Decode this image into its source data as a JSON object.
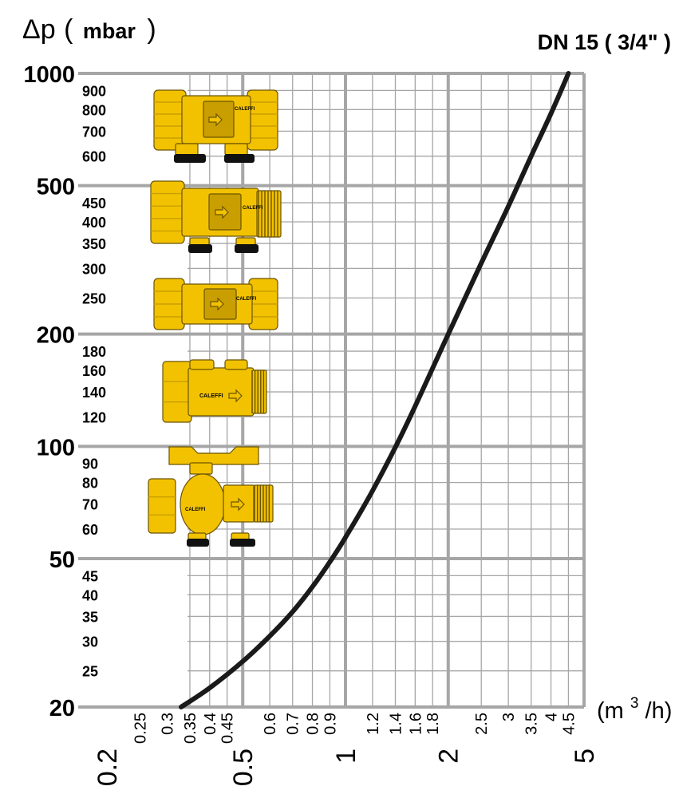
{
  "title": "DN 15 ( 3/4\" )",
  "y_label": {
    "symbol": "Δp",
    "paren_open": "(",
    "unit": "mbar",
    "paren_close": ")"
  },
  "x_unit": {
    "open": "(m",
    "sup": "3",
    "close": "/h)"
  },
  "y_major_ticks": [
    {
      "value": 1000,
      "label": "1000"
    },
    {
      "value": 500,
      "label": "500"
    },
    {
      "value": 200,
      "label": "200"
    },
    {
      "value": 100,
      "label": "100"
    },
    {
      "value": 50,
      "label": "50"
    },
    {
      "value": 20,
      "label": "20"
    }
  ],
  "y_minor_ticks": [
    {
      "value": 900,
      "label": "900"
    },
    {
      "value": 800,
      "label": "800"
    },
    {
      "value": 700,
      "label": "700"
    },
    {
      "value": 600,
      "label": "600"
    },
    {
      "value": 450,
      "label": "450"
    },
    {
      "value": 400,
      "label": "400"
    },
    {
      "value": 350,
      "label": "350"
    },
    {
      "value": 300,
      "label": "300"
    },
    {
      "value": 250,
      "label": "250"
    },
    {
      "value": 180,
      "label": "180"
    },
    {
      "value": 160,
      "label": "160"
    },
    {
      "value": 140,
      "label": "140"
    },
    {
      "value": 120,
      "label": "120"
    },
    {
      "value": 90,
      "label": "90"
    },
    {
      "value": 80,
      "label": "80"
    },
    {
      "value": 70,
      "label": "70"
    },
    {
      "value": 60,
      "label": "60"
    },
    {
      "value": 45,
      "label": "45"
    },
    {
      "value": 40,
      "label": "40"
    },
    {
      "value": 35,
      "label": "35"
    },
    {
      "value": 30,
      "label": "30"
    },
    {
      "value": 25,
      "label": "25"
    }
  ],
  "x_major_ticks": [
    {
      "value": 0.2,
      "label": "0.2"
    },
    {
      "value": 0.5,
      "label": "0.5"
    },
    {
      "value": 1,
      "label": "1"
    },
    {
      "value": 2,
      "label": "2"
    },
    {
      "value": 5,
      "label": "5"
    }
  ],
  "x_minor_ticks": [
    {
      "value": 0.25,
      "label": "0.25"
    },
    {
      "value": 0.3,
      "label": "0.3"
    },
    {
      "value": 0.35,
      "label": "0.35"
    },
    {
      "value": 0.4,
      "label": "0.4"
    },
    {
      "value": 0.45,
      "label": "0.45"
    },
    {
      "value": 0.6,
      "label": "0.6"
    },
    {
      "value": 0.7,
      "label": "0.7"
    },
    {
      "value": 0.8,
      "label": "0.8"
    },
    {
      "value": 0.9,
      "label": "0.9"
    },
    {
      "value": 1.2,
      "label": "1.2"
    },
    {
      "value": 1.4,
      "label": "1.4"
    },
    {
      "value": 1.6,
      "label": "1.6"
    },
    {
      "value": 1.8,
      "label": "1.8"
    },
    {
      "value": 2.5,
      "label": "2.5"
    },
    {
      "value": 3,
      "label": "3"
    },
    {
      "value": 3.5,
      "label": "3.5"
    },
    {
      "value": 4,
      "label": "4"
    },
    {
      "value": 4.5,
      "label": "4.5"
    }
  ],
  "x_grid_values": [
    0.25,
    0.3,
    0.35,
    0.4,
    0.45,
    0.6,
    0.7,
    0.8,
    0.9,
    1.2,
    1.4,
    1.6,
    1.8,
    2.5,
    3,
    3.5,
    4,
    4.5
  ],
  "y_grid_values": [
    900,
    800,
    700,
    600,
    450,
    400,
    350,
    300,
    250,
    180,
    160,
    140,
    120,
    90,
    80,
    70,
    60,
    45,
    40,
    35,
    30,
    25
  ],
  "valve_images": [
    {
      "name": "valve-image-1",
      "text": "CALEFFI"
    },
    {
      "name": "valve-image-2",
      "text": "CALEFFI"
    },
    {
      "name": "valve-image-3",
      "text": "CALEFFI"
    },
    {
      "name": "valve-image-4",
      "text": "CALEFFI"
    },
    {
      "name": "valve-image-5",
      "text": "CALEFFI"
    }
  ],
  "colors": {
    "grid": "#a6a6a6",
    "curve": "#1a1a1a",
    "brass": "#f2c200",
    "brass_dark": "#6b5400",
    "brass_mid": "#c99e00",
    "fitting": "#111111"
  },
  "chart_data": {
    "type": "line",
    "title": "DN 15 ( 3/4\" )",
    "xlabel": "(m3/h)",
    "ylabel": "Δp ( mbar )",
    "xscale": "log",
    "yscale": "log",
    "xlim": [
      0.2,
      5
    ],
    "ylim": [
      20,
      1000
    ],
    "grid": true,
    "series": [
      {
        "x": [
          0.33,
          0.4,
          0.5,
          0.6,
          0.7,
          0.8,
          0.9,
          1.0,
          1.2,
          1.5,
          2.0,
          2.5,
          3.0,
          3.5,
          4.0,
          4.5
        ],
        "y": [
          20,
          22.5,
          26.5,
          31,
          36,
          42,
          49,
          57,
          76,
          113,
          200,
          310,
          440,
          600,
          780,
          1000
        ]
      }
    ]
  }
}
